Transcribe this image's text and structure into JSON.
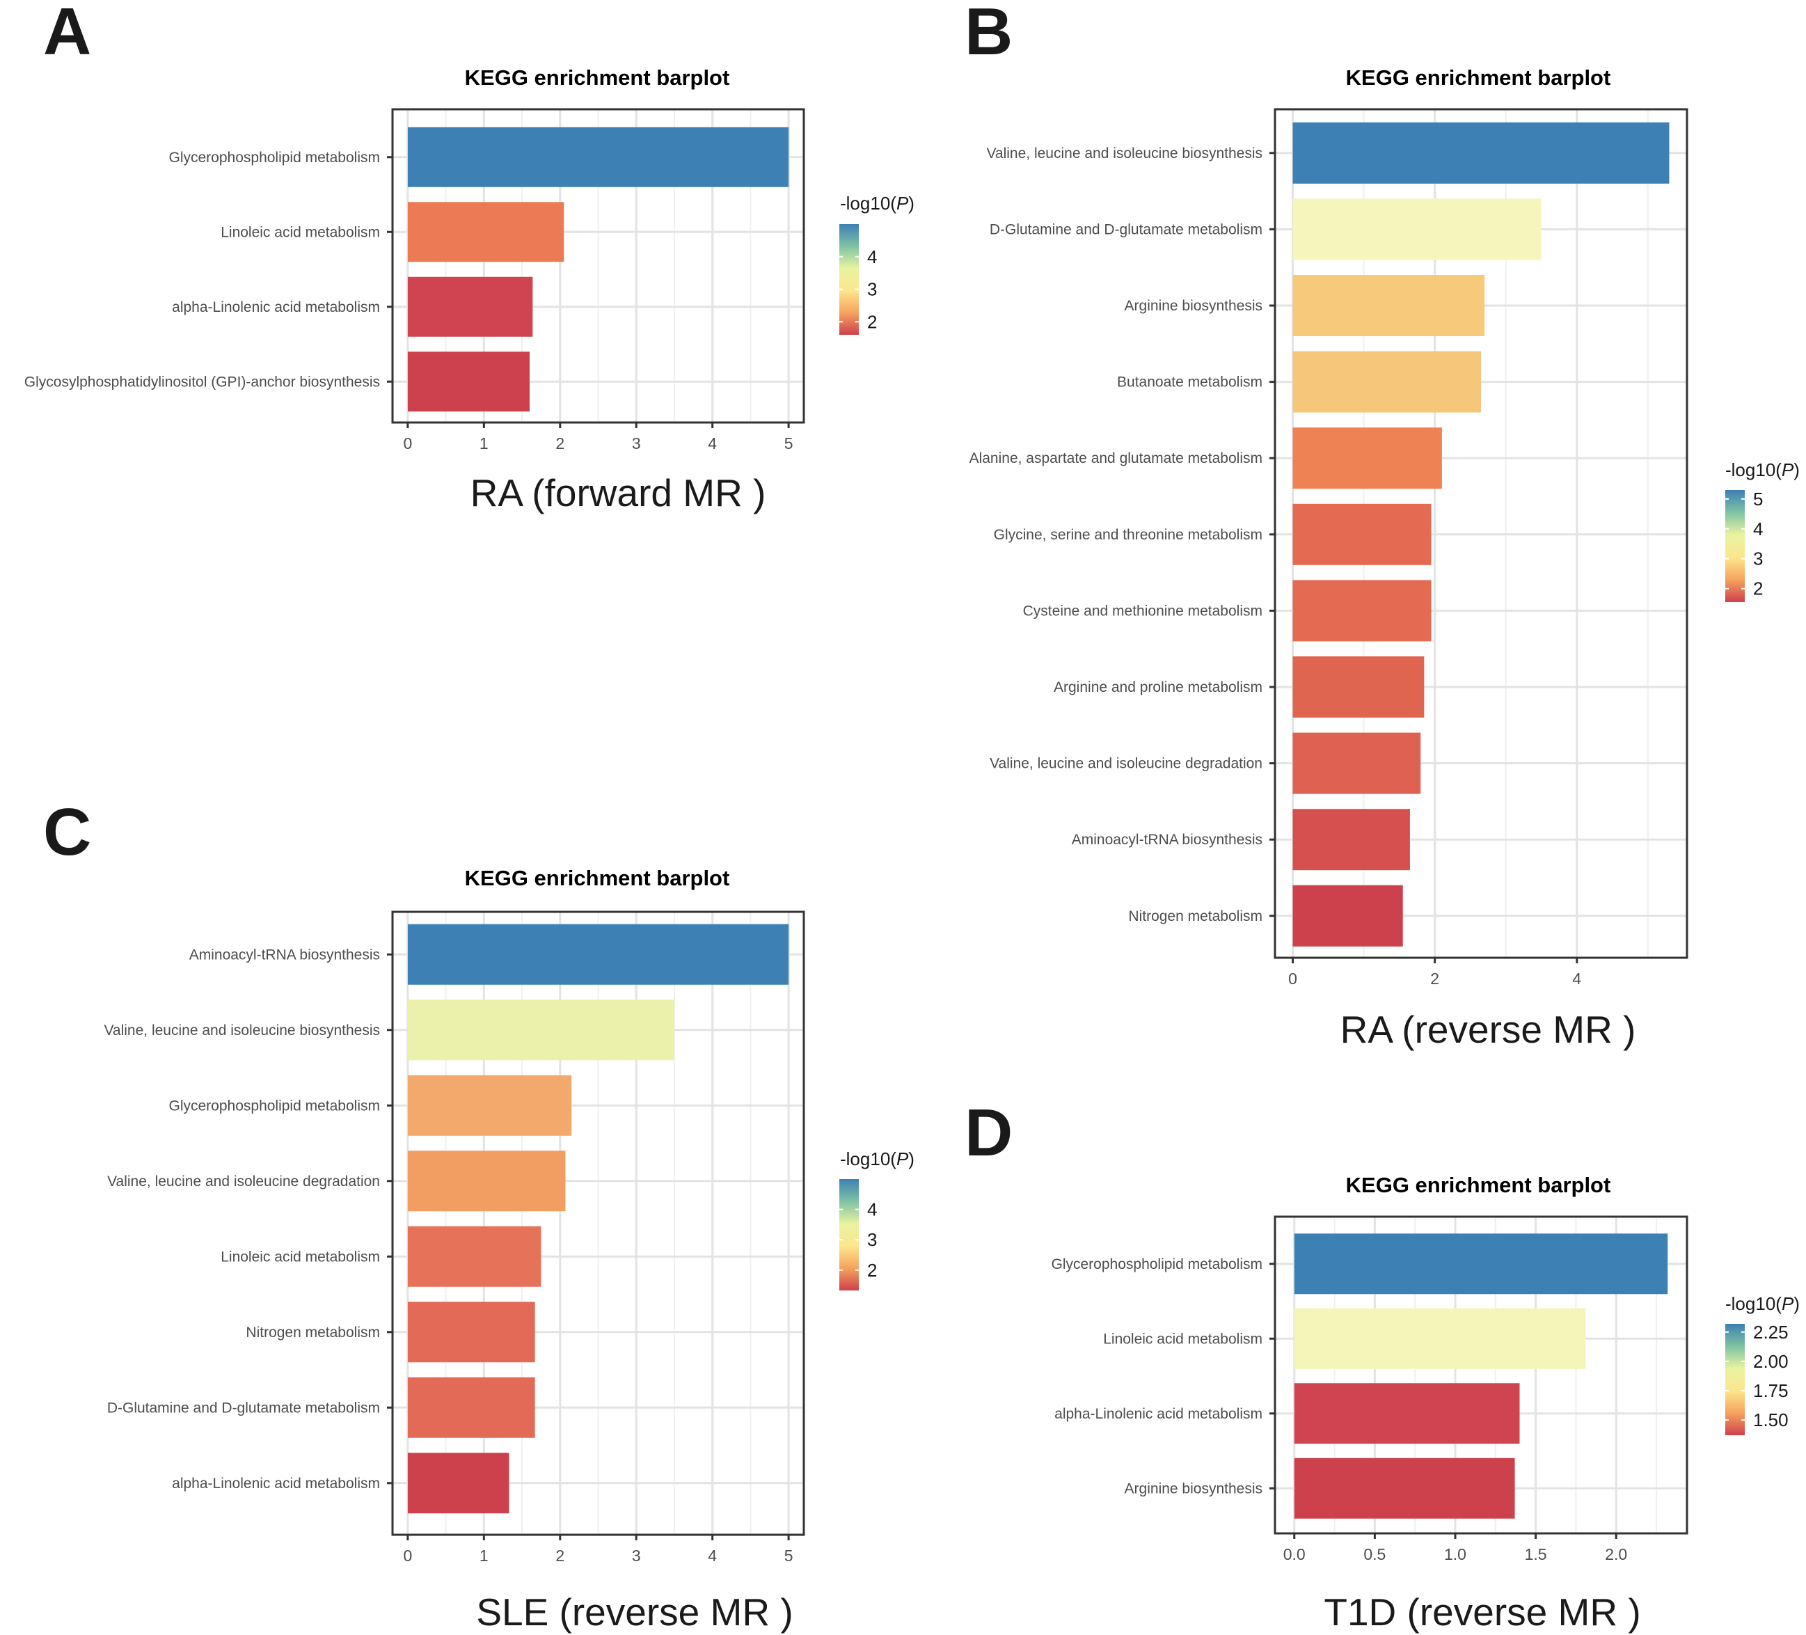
{
  "chart_data": [
    {
      "panel": "A",
      "type": "bar",
      "orientation": "horizontal",
      "title": "KEGG enrichment barplot",
      "xlabel": "RA (forward MR )",
      "categories": [
        "Glycerophospholipid metabolism",
        "Linoleic acid metabolism",
        "alpha-Linolenic acid metabolism",
        "Glycosylphosphatidylinositol (GPI)-anchor biosynthesis"
      ],
      "values": [
        5.0,
        2.05,
        1.64,
        1.6
      ],
      "xlim": [
        -0.2,
        5.2
      ],
      "xticks": [
        0,
        1,
        2,
        3,
        4,
        5
      ],
      "xtick_labels": [
        "0",
        "1",
        "2",
        "3",
        "4",
        "5"
      ],
      "grid": true,
      "colors": [
        "#3c80b4",
        "#ec7b55",
        "#cf4450",
        "#cd404d"
      ],
      "legend": {
        "title": "-log10(",
        "title_italic": "P",
        "title_end": ")",
        "ticks": [
          4,
          3,
          2
        ],
        "tick_labels": [
          "4",
          "3",
          "2"
        ],
        "range": [
          1.6,
          5.0
        ]
      }
    },
    {
      "panel": "B",
      "type": "bar",
      "orientation": "horizontal",
      "title": "KEGG enrichment barplot",
      "xlabel": "RA (reverse MR )",
      "categories": [
        "Valine, leucine and isoleucine biosynthesis",
        "D-Glutamine and D-glutamate metabolism",
        "Arginine biosynthesis",
        "Butanoate metabolism",
        "Alanine, aspartate and glutamate metabolism",
        "Glycine, serine and threonine metabolism",
        "Cysteine and methionine metabolism",
        "Arginine and proline metabolism",
        "Valine, leucine and isoleucine degradation",
        "Aminoacyl-tRNA biosynthesis",
        "Nitrogen metabolism"
      ],
      "values": [
        5.3,
        3.5,
        2.7,
        2.65,
        2.1,
        1.95,
        1.95,
        1.85,
        1.8,
        1.65,
        1.55
      ],
      "xlim": [
        -0.25,
        5.55
      ],
      "xticks": [
        0,
        2,
        4
      ],
      "xtick_labels": [
        "0",
        "2",
        "4"
      ],
      "grid": true,
      "colors": [
        "#3c80b4",
        "#f6f5bb",
        "#f6c97b",
        "#f6c77b",
        "#ee8255",
        "#e46a52",
        "#e46a52",
        "#e06551",
        "#df6151",
        "#d5504f",
        "#cd414c"
      ],
      "legend": {
        "title": "-log10(",
        "title_italic": "P",
        "title_end": ")",
        "ticks": [
          5,
          4,
          3,
          2
        ],
        "tick_labels": [
          "5",
          "4",
          "3",
          "2"
        ],
        "range": [
          1.55,
          5.3
        ]
      }
    },
    {
      "panel": "C",
      "type": "bar",
      "orientation": "horizontal",
      "title": "KEGG enrichment barplot",
      "xlabel": "SLE (reverse MR )",
      "categories": [
        "Aminoacyl-tRNA biosynthesis",
        "Valine, leucine and isoleucine biosynthesis",
        "Glycerophospholipid metabolism",
        "Valine, leucine and isoleucine degradation",
        "Linoleic acid metabolism",
        "Nitrogen metabolism",
        "D-Glutamine and D-glutamate metabolism",
        "alpha-Linolenic acid metabolism"
      ],
      "values": [
        5.0,
        3.5,
        2.15,
        2.07,
        1.75,
        1.67,
        1.67,
        1.33
      ],
      "xlim": [
        -0.2,
        5.2
      ],
      "xticks": [
        0,
        1,
        2,
        3,
        4,
        5
      ],
      "xtick_labels": [
        "0",
        "1",
        "2",
        "3",
        "4",
        "5"
      ],
      "grid": true,
      "colors": [
        "#3c80b4",
        "#ebf1aa",
        "#f4a96c",
        "#f29d62",
        "#e7725a",
        "#e36a57",
        "#e36a57",
        "#cd414c"
      ],
      "legend": {
        "title": "-log10(",
        "title_italic": "P",
        "title_end": ")",
        "ticks": [
          4,
          3,
          2
        ],
        "tick_labels": [
          "4",
          "3",
          "2"
        ],
        "range": [
          1.33,
          5.0
        ]
      }
    },
    {
      "panel": "D",
      "type": "bar",
      "orientation": "horizontal",
      "title": "KEGG enrichment barplot",
      "xlabel": "T1D (reverse MR )",
      "categories": [
        "Glycerophospholipid metabolism",
        "Linoleic acid metabolism",
        "alpha-Linolenic acid metabolism",
        "Arginine biosynthesis"
      ],
      "values": [
        2.32,
        1.81,
        1.4,
        1.37
      ],
      "xlim": [
        -0.12,
        2.44
      ],
      "xticks": [
        0,
        0.5,
        1.0,
        1.5,
        2.0
      ],
      "xtick_labels": [
        "0.0",
        "0.5",
        "1.0",
        "1.5",
        "2.0"
      ],
      "grid": true,
      "colors": [
        "#3c80b4",
        "#f6f5b9",
        "#cf4450",
        "#cd414c"
      ],
      "legend": {
        "title": "-log10(",
        "title_italic": "P",
        "title_end": ")",
        "ticks": [
          2.25,
          2.0,
          1.75,
          1.5
        ],
        "tick_labels": [
          "2.25",
          "2.00",
          "1.75",
          "1.50"
        ],
        "range": [
          1.37,
          2.32
        ]
      }
    }
  ],
  "legend_gradient": [
    "#3c80b4",
    "#7fc2a4",
    "#e8f3a0",
    "#fce68f",
    "#f6a35e",
    "#cd404d"
  ]
}
